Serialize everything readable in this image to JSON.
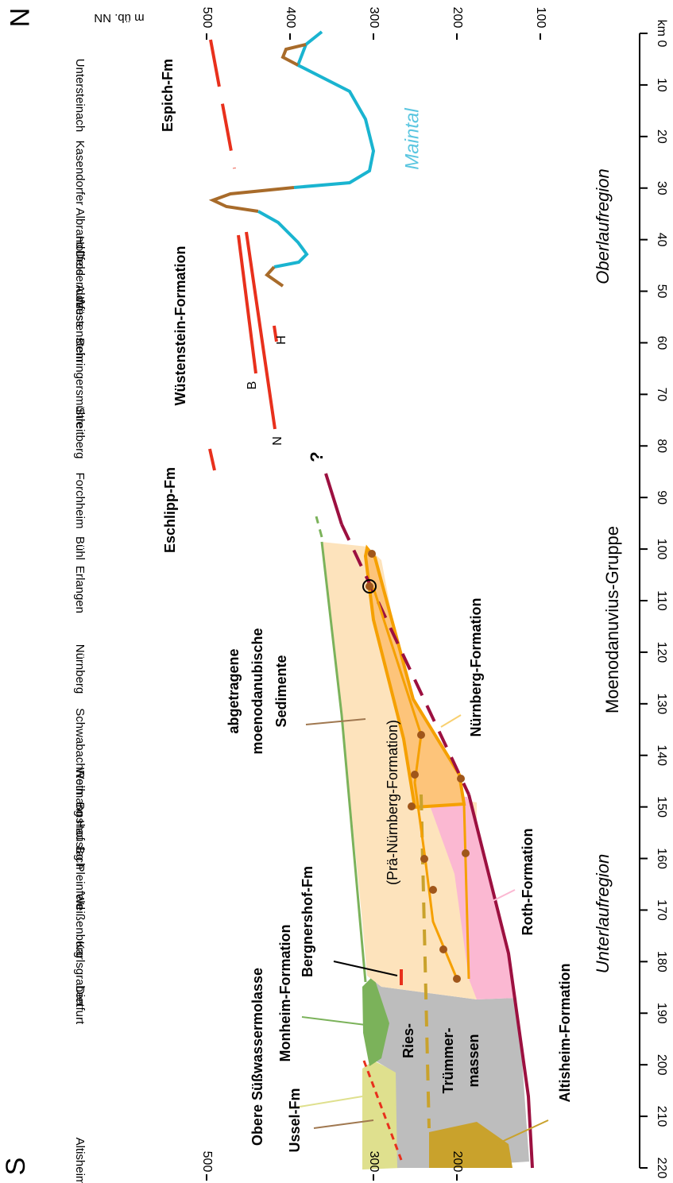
{
  "header": {
    "south": "S",
    "north": "N",
    "elevation_unit": "m üb. NN"
  },
  "km_axis": {
    "ticks": [
      {
        "value": 0,
        "label": "km 0"
      },
      10,
      20,
      30,
      40,
      50,
      60,
      70,
      80,
      90,
      100,
      110,
      120,
      130,
      140,
      150,
      160,
      170,
      180,
      190,
      200,
      210,
      220
    ]
  },
  "elevation_axis": {
    "top_ticks": [
      500,
      400,
      300,
      200,
      100
    ],
    "bottom_ticks": [
      500,
      300,
      200
    ]
  },
  "places": [
    "Untersteinach",
    "Kasendorfer Albrand",
    "Hollfeld",
    "Drosendorf",
    "Aufsess",
    "Wüstenstein",
    "Behringersmühle",
    "Streitberg",
    "Forchheim",
    "Bühl",
    "Erlangen",
    "Nürnberg",
    "Schwabach",
    "Roth",
    "Weimannshof",
    "Bg Hauslach",
    "Bg Pleinfeld",
    "Weißenburg",
    "Karlsgraben",
    "Dietfurt",
    "Altisheim"
  ],
  "labels": {
    "espich": "Espich-Fm",
    "wuestenstein": "Wüstenstein-Formation",
    "eschlipp": "Eschlipp-Fm",
    "b": "B",
    "n": "N",
    "h": "H",
    "question": "?",
    "maintal": "Maintal",
    "abgetragene": [
      "abgetragene",
      "moenodanubische",
      "Sedimente"
    ],
    "nuernberg": "Nürnberg-Formation",
    "prae_nuernberg": "(Prä-Nürnberg-Formation)",
    "gruppe": "Moenodanuvius-Gruppe",
    "oberlauf": "Oberlaufregion",
    "unterlauf": "Unterlaufregion",
    "roth": "Roth-Formation",
    "bergnershof": "Bergnershof-Fm",
    "monheim": "Monheim-Formation",
    "osm": "Obere Süßwassermolasse",
    "ussel": "Ussel-Fm",
    "ries": [
      "Ries-",
      "Trümmer-",
      "massen"
    ],
    "altisheim": "Altisheim-Formation"
  }
}
